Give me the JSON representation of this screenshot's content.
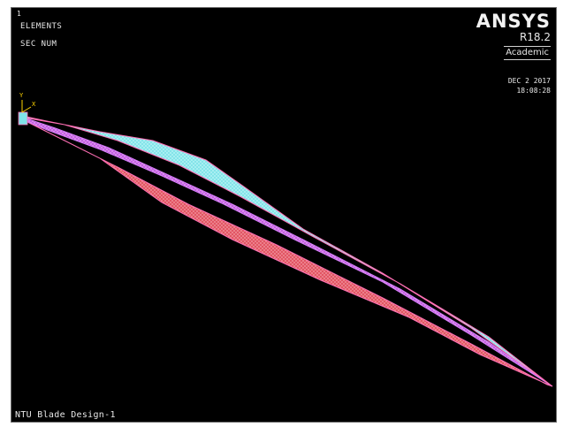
{
  "viewport": {
    "window_number": "1",
    "elements_label": "ELEMENTS",
    "material_numbering": "SEC NUM",
    "title": "NTU Blade Design-1",
    "triad_labels": {
      "y": "Y",
      "x": "X"
    }
  },
  "branding": {
    "name": "ANSYS",
    "release": "R18.2",
    "edition": "Academic",
    "date": "DEC  2 2017",
    "time": "18:08:28"
  },
  "colors": {
    "background": "#000000",
    "section_cyan": "#7fe3e8",
    "section_magenta": "#c05ae0",
    "section_red": "#e0505e",
    "edge_pink": "#ff6fb5"
  }
}
